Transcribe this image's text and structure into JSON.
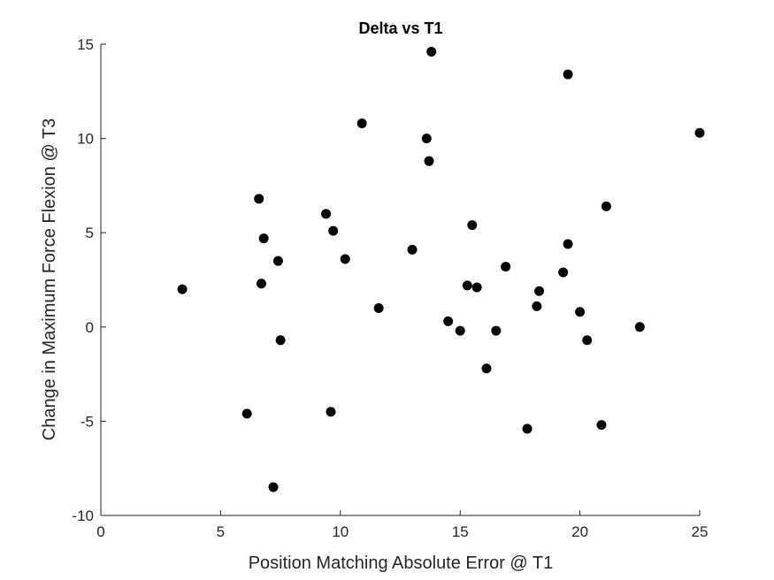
{
  "chart_data": {
    "type": "scatter",
    "title": "Delta vs T1",
    "xlabel": "Position Matching Absolute Error @ T1",
    "ylabel": "Change in Maximum Force Flexion @ T3",
    "xlim": [
      0,
      25
    ],
    "ylim": [
      -10,
      15
    ],
    "xticks": [
      0,
      5,
      10,
      15,
      20,
      25
    ],
    "yticks": [
      -10,
      -5,
      0,
      5,
      10,
      15
    ],
    "grid": false,
    "marker_color": "#000000",
    "series": [
      {
        "points": [
          {
            "x": 3.4,
            "y": 2.0
          },
          {
            "x": 6.1,
            "y": -4.6
          },
          {
            "x": 6.6,
            "y": 6.8
          },
          {
            "x": 6.7,
            "y": 2.3
          },
          {
            "x": 6.8,
            "y": 4.7
          },
          {
            "x": 7.2,
            "y": -8.5
          },
          {
            "x": 7.4,
            "y": 3.5
          },
          {
            "x": 7.5,
            "y": -0.7
          },
          {
            "x": 9.4,
            "y": 6.0
          },
          {
            "x": 9.6,
            "y": -4.5
          },
          {
            "x": 9.7,
            "y": 5.1
          },
          {
            "x": 10.2,
            "y": 3.6
          },
          {
            "x": 10.9,
            "y": 10.8
          },
          {
            "x": 11.6,
            "y": 1.0
          },
          {
            "x": 13.0,
            "y": 4.1
          },
          {
            "x": 13.6,
            "y": 10.0
          },
          {
            "x": 13.7,
            "y": 8.8
          },
          {
            "x": 13.8,
            "y": 14.6
          },
          {
            "x": 14.5,
            "y": 0.3
          },
          {
            "x": 15.0,
            "y": -0.2
          },
          {
            "x": 15.3,
            "y": 2.2
          },
          {
            "x": 15.5,
            "y": 5.4
          },
          {
            "x": 15.7,
            "y": 2.1
          },
          {
            "x": 16.1,
            "y": -2.2
          },
          {
            "x": 16.5,
            "y": -0.2
          },
          {
            "x": 16.9,
            "y": 3.2
          },
          {
            "x": 17.8,
            "y": -5.4
          },
          {
            "x": 18.2,
            "y": 1.1
          },
          {
            "x": 18.3,
            "y": 1.9
          },
          {
            "x": 19.3,
            "y": 2.9
          },
          {
            "x": 19.5,
            "y": 13.4
          },
          {
            "x": 19.5,
            "y": 4.4
          },
          {
            "x": 20.0,
            "y": 0.8
          },
          {
            "x": 20.3,
            "y": -0.7
          },
          {
            "x": 20.9,
            "y": -5.2
          },
          {
            "x": 21.1,
            "y": 6.4
          },
          {
            "x": 22.5,
            "y": 0.0
          },
          {
            "x": 25.0,
            "y": 10.3
          }
        ]
      }
    ]
  }
}
